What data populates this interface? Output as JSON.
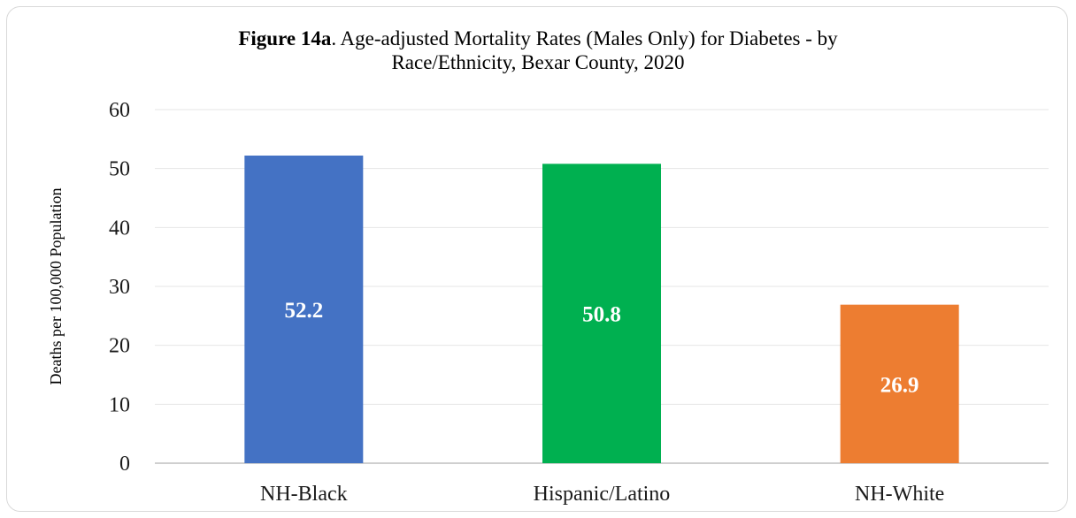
{
  "title": {
    "figure_label": "Figure 14a",
    "line1_rest": ". Age-adjusted Mortality Rates (Males Only) for Diabetes - by",
    "line2": "Race/Ethnicity, Bexar County, 2020"
  },
  "chart_data": {
    "type": "bar",
    "title": "Figure 14a. Age-adjusted Mortality Rates (Males Only) for Diabetes - by Race/Ethnicity, Bexar County, 2020",
    "categories": [
      "NH-Black",
      "Hispanic/Latino",
      "NH-White"
    ],
    "values": [
      52.2,
      50.8,
      26.9
    ],
    "data_labels": [
      "52.2",
      "50.8",
      "26.9"
    ],
    "colors": [
      "#4472c4",
      "#00b050",
      "#ed7d31"
    ],
    "xlabel": "",
    "ylabel": "Deaths per 100,000 Population",
    "ylim": [
      0,
      60
    ],
    "yticks": [
      0,
      10,
      20,
      30,
      40,
      50,
      60
    ],
    "grid": true,
    "legend": "none"
  }
}
